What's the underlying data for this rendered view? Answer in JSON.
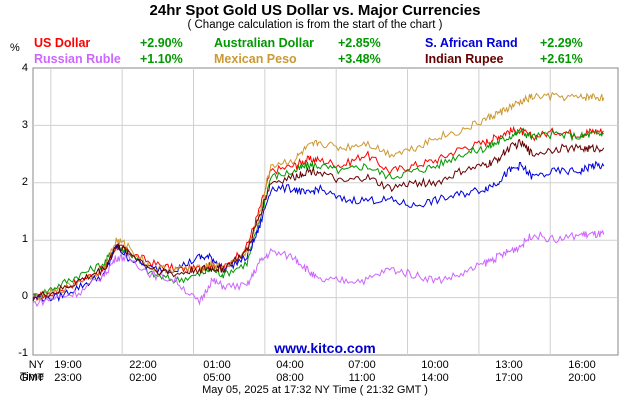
{
  "chart_data": {
    "type": "line",
    "title": "24hr Spot Gold US Dollar vs. Major Currencies",
    "subtitle": "( Change calculation is from the start of the chart )",
    "ylabel": "%",
    "ylim": [
      -1,
      4
    ],
    "yticks": [
      "4",
      "3",
      "2",
      "1",
      "0",
      "-1"
    ],
    "grid": true,
    "legend_placement": "top",
    "x_ticks_ny": [
      "19:00",
      "22:00",
      "01:00",
      "04:00",
      "07:00",
      "10:00",
      "13:00",
      "16:00"
    ],
    "x_ticks_gmt": [
      "23:00",
      "02:00",
      "05:00",
      "08:00",
      "11:00",
      "14:00",
      "17:00",
      "20:00"
    ],
    "tz_ny": "NY Time",
    "tz_gmt": "GMT",
    "watermark": "www.kitco.com",
    "footer": "May 05, 2025 at 17:32 NY Time ( 21:32 GMT )",
    "x_hours": [
      0,
      1,
      2,
      3,
      3.5,
      4,
      5,
      6,
      7,
      7.5,
      8,
      9,
      9.5,
      10,
      11,
      11.5,
      12,
      13,
      14,
      15,
      16,
      17,
      18,
      19,
      19.5,
      20,
      20.5,
      21,
      22,
      23,
      23.5,
      24
    ],
    "series": [
      {
        "name": "US Dollar",
        "change": "+2.90%",
        "color": "#ff0000",
        "values": [
          0.0,
          0.1,
          0.3,
          0.5,
          0.9,
          0.8,
          0.6,
          0.5,
          0.5,
          0.6,
          0.5,
          0.9,
          1.5,
          2.2,
          2.3,
          2.4,
          2.4,
          2.3,
          2.5,
          2.2,
          2.3,
          2.4,
          2.6,
          2.7,
          2.8,
          2.9,
          2.9,
          2.8,
          2.9,
          2.85,
          2.9,
          2.9
        ]
      },
      {
        "name": "Australian Dollar",
        "change": "+2.85%",
        "color": "#009900",
        "values": [
          0.0,
          0.2,
          0.4,
          0.6,
          0.9,
          0.8,
          0.4,
          0.3,
          0.4,
          0.5,
          0.4,
          0.6,
          1.3,
          2.1,
          2.2,
          2.3,
          2.3,
          2.2,
          2.3,
          2.1,
          2.2,
          2.3,
          2.5,
          2.6,
          2.7,
          2.8,
          2.9,
          2.8,
          2.85,
          2.8,
          2.85,
          2.85
        ]
      },
      {
        "name": "S. African Rand",
        "change": "+2.29%",
        "color": "#0000dd",
        "values": [
          0.0,
          0.0,
          0.2,
          0.4,
          0.9,
          0.7,
          0.5,
          0.5,
          0.7,
          0.7,
          0.5,
          0.7,
          1.2,
          1.9,
          1.9,
          1.8,
          1.9,
          1.7,
          1.7,
          1.7,
          1.6,
          1.7,
          1.8,
          1.9,
          2.0,
          2.2,
          2.3,
          2.1,
          2.2,
          2.2,
          2.3,
          2.29
        ]
      },
      {
        "name": "Russian Ruble",
        "change": "+1.10%",
        "color": "#cc66ff",
        "values": [
          -0.1,
          0.0,
          0.1,
          0.4,
          0.7,
          0.7,
          0.4,
          0.3,
          -0.1,
          0.3,
          0.2,
          0.2,
          0.6,
          0.8,
          0.7,
          0.5,
          0.3,
          0.3,
          0.3,
          0.5,
          0.4,
          0.3,
          0.4,
          0.6,
          0.7,
          0.8,
          0.9,
          1.1,
          1.0,
          1.1,
          1.1,
          1.1
        ]
      },
      {
        "name": "Mexican Peso",
        "change": "+3.48%",
        "color": "#cc9933",
        "values": [
          0.0,
          0.1,
          0.3,
          0.5,
          1.0,
          0.9,
          0.5,
          0.5,
          0.5,
          0.6,
          0.5,
          0.8,
          1.4,
          2.3,
          2.4,
          2.6,
          2.7,
          2.6,
          2.7,
          2.5,
          2.6,
          2.8,
          2.9,
          3.1,
          3.2,
          3.3,
          3.4,
          3.5,
          3.5,
          3.48,
          3.5,
          3.48
        ]
      },
      {
        "name": "Indian Rupee",
        "change": "+2.61%",
        "color": "#660000",
        "values": [
          0.0,
          0.1,
          0.3,
          0.5,
          0.9,
          0.8,
          0.5,
          0.4,
          0.5,
          0.5,
          0.5,
          0.8,
          1.4,
          2.0,
          2.1,
          2.2,
          2.2,
          2.0,
          2.1,
          1.9,
          2.0,
          2.0,
          2.2,
          2.3,
          2.4,
          2.6,
          2.7,
          2.5,
          2.6,
          2.6,
          2.6,
          2.61
        ]
      }
    ]
  }
}
